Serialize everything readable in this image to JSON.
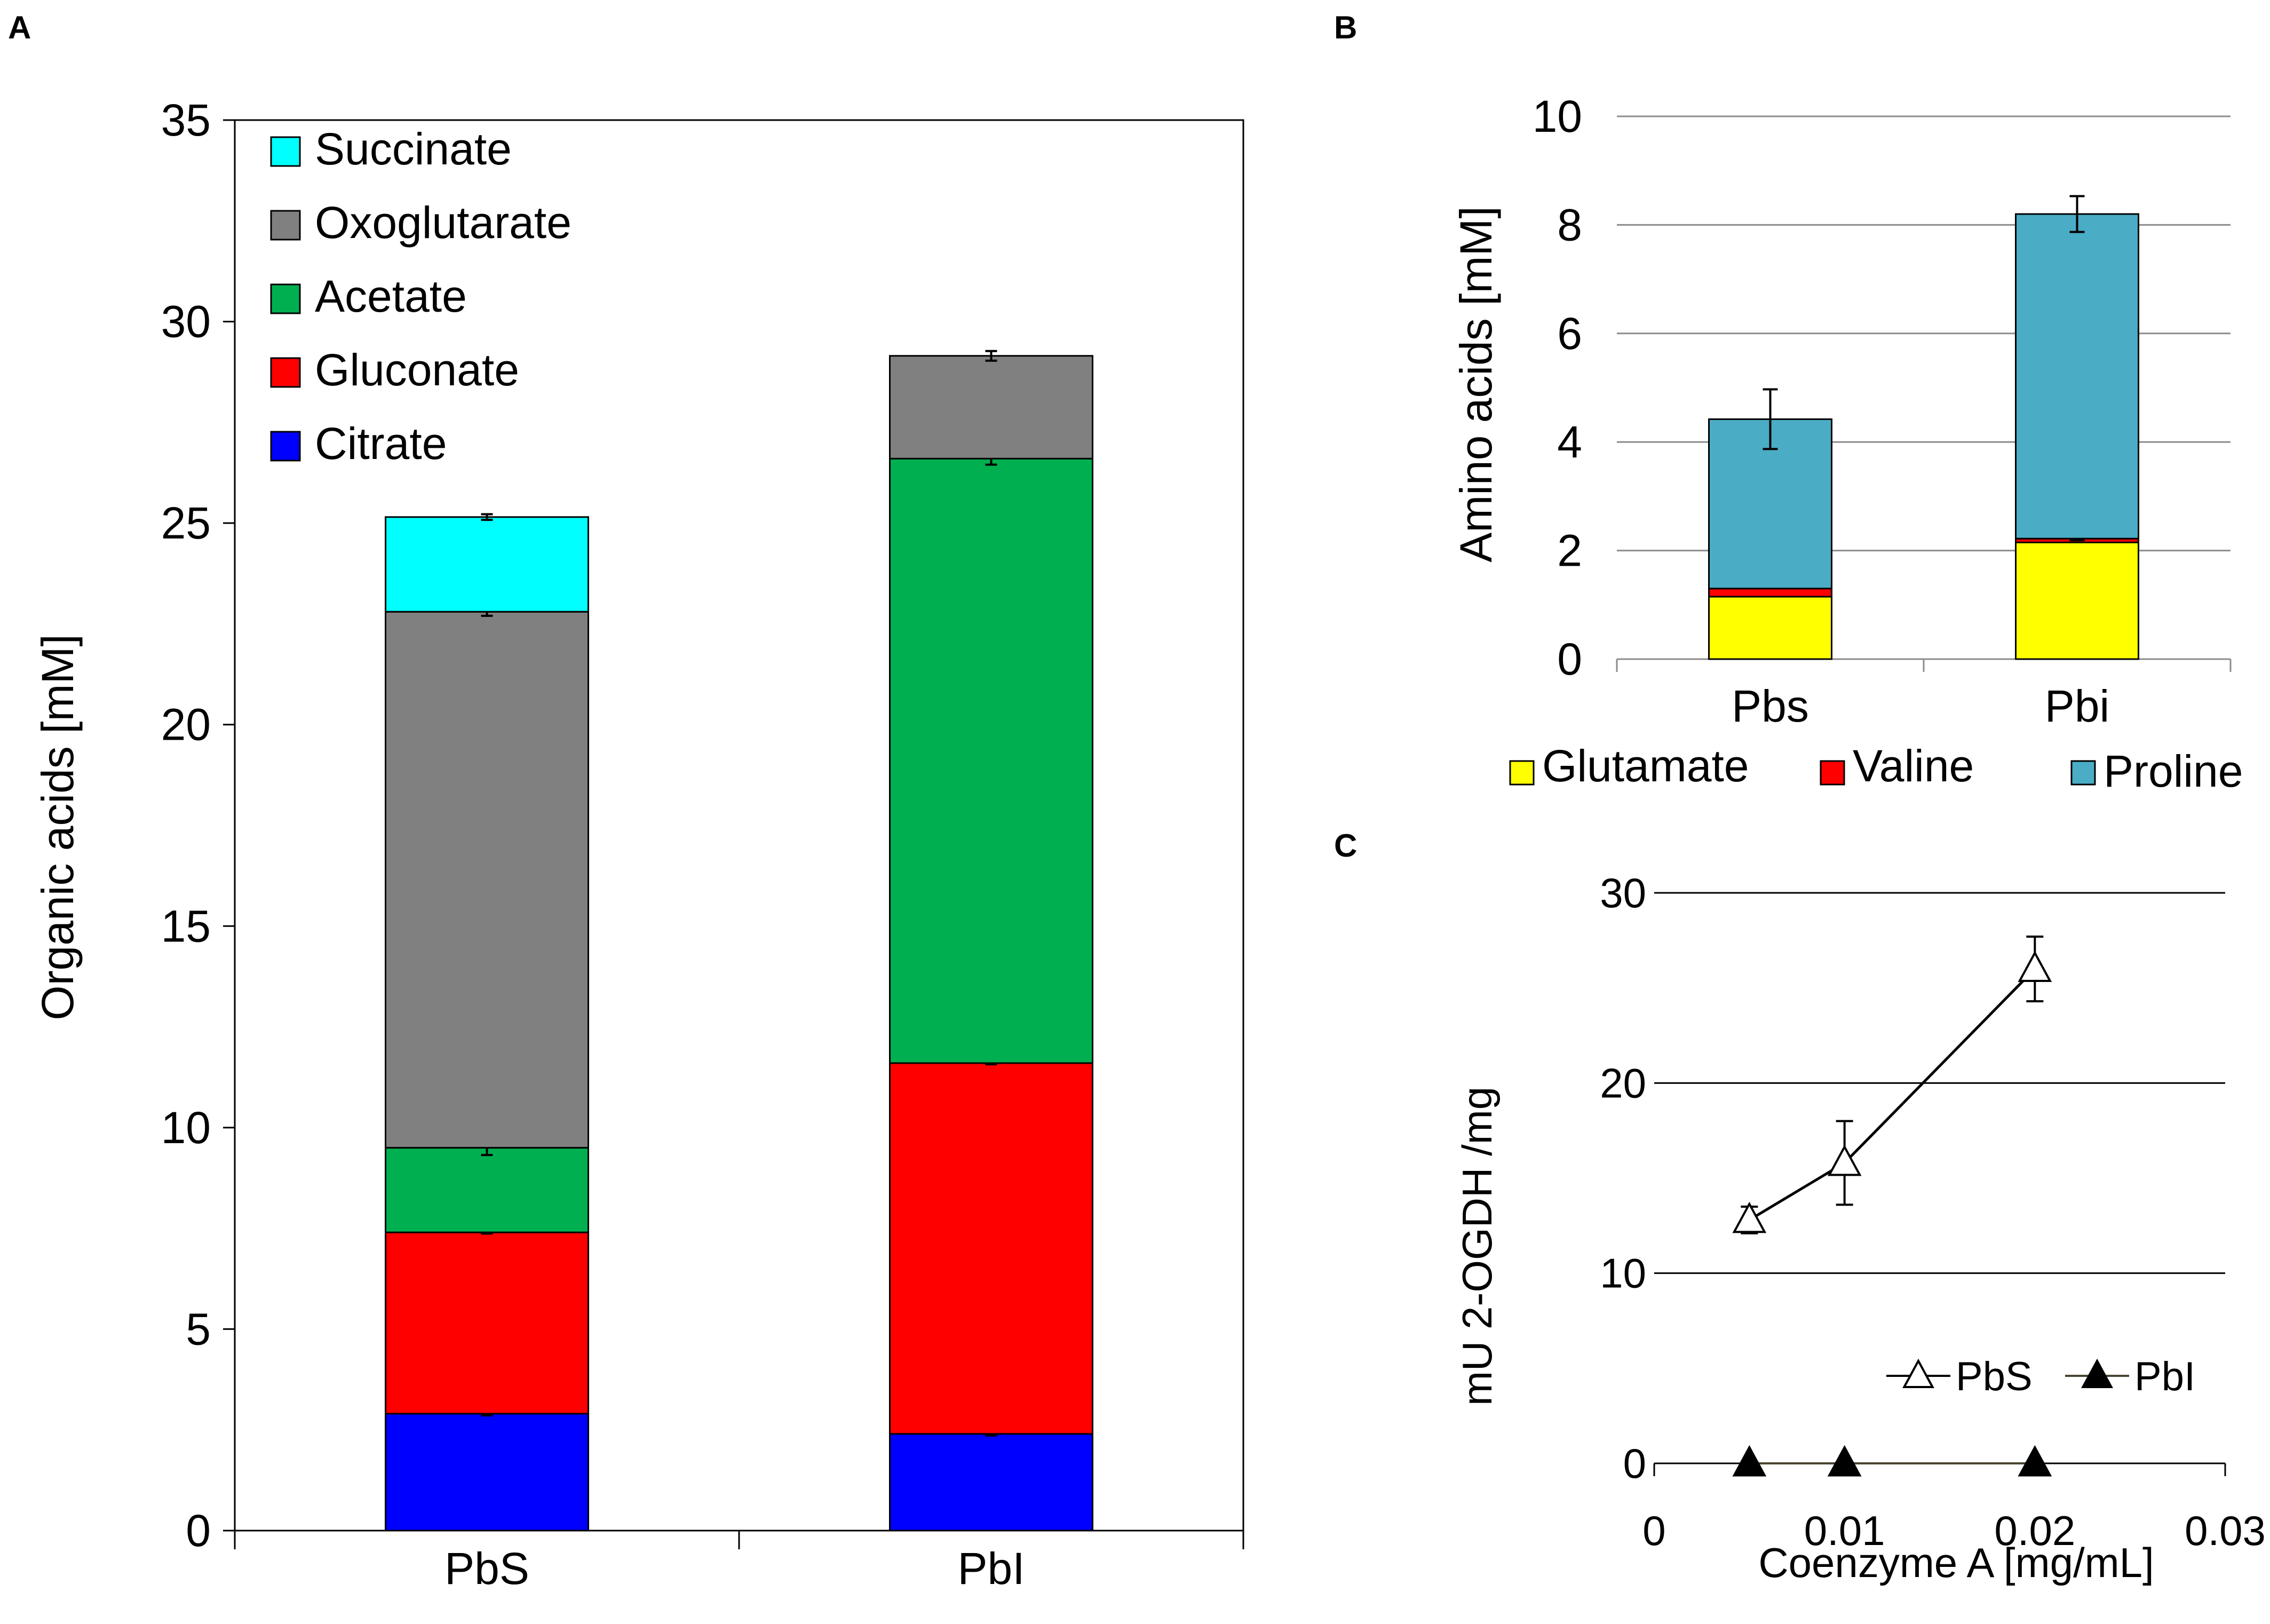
{
  "chart_data": [
    {
      "panel": "A",
      "type": "bar",
      "stacked": true,
      "categories": [
        "PbS",
        "PbI"
      ],
      "ylabel": "Organic acids [mM]",
      "xlabel": "",
      "ylim": [
        0,
        35
      ],
      "yticks": [
        "0",
        "5",
        "10",
        "15",
        "20",
        "25",
        "30",
        "35"
      ],
      "grid": false,
      "legend": "top-left",
      "series": [
        {
          "name": "Citrate",
          "color": "#0000FF",
          "values": [
            2.9,
            2.4
          ],
          "errors": [
            0.04,
            0.04
          ]
        },
        {
          "name": "Gluconate",
          "color": "#FF0000",
          "values": [
            4.5,
            9.2
          ],
          "errors": [
            0.03,
            0.03
          ]
        },
        {
          "name": "Acetate",
          "color": "#00B050",
          "values": [
            2.1,
            15.0
          ],
          "errors": [
            0.18,
            0.15
          ]
        },
        {
          "name": "Oxoglutarate",
          "color": "#808080",
          "values": [
            13.3,
            2.55
          ],
          "errors": [
            0.1,
            0.12
          ]
        },
        {
          "name": "Succinate",
          "color": "#00FFFF",
          "values": [
            2.35,
            0
          ],
          "errors": [
            0.07,
            0
          ]
        }
      ]
    },
    {
      "panel": "B",
      "type": "bar",
      "stacked": true,
      "categories": [
        "Pbs",
        "Pbi"
      ],
      "ylabel": "Amino acids [mM]",
      "xlabel": "",
      "ylim": [
        0,
        10
      ],
      "yticks": [
        "0",
        "2",
        "4",
        "6",
        "8",
        "10"
      ],
      "grid": true,
      "legend": "bottom",
      "series": [
        {
          "name": "Glutamate",
          "color": "#FFFF00",
          "values": [
            1.15,
            2.15
          ],
          "errors": [
            0,
            0
          ]
        },
        {
          "name": "Valine",
          "color": "#FF0000",
          "values": [
            0.15,
            0.07
          ],
          "errors": [
            0,
            0.03
          ]
        },
        {
          "name": "Proline",
          "color": "#4BACC6",
          "values": [
            3.12,
            5.98
          ],
          "errors": [
            0.55,
            0.33
          ]
        }
      ]
    },
    {
      "panel": "C",
      "type": "line",
      "xlabel": "Coenzyme A [mg/mL]",
      "ylabel": "mU 2-OGDH /mg",
      "xlim": [
        0,
        0.03
      ],
      "ylim": [
        0,
        30
      ],
      "xticks": [
        "0",
        "0.01",
        "0.02",
        "0.03"
      ],
      "yticks": [
        "0",
        "10",
        "20",
        "30"
      ],
      "grid": true,
      "legend": "bottom-right",
      "series": [
        {
          "name": "PbS",
          "marker": "open-triangle",
          "x": [
            0.005,
            0.01,
            0.02
          ],
          "y": [
            12.8,
            15.8,
            26.0
          ],
          "errors": [
            0.7,
            2.2,
            1.7
          ]
        },
        {
          "name": "PbI",
          "marker": "filled-triangle",
          "x": [
            0.005,
            0.01,
            0.02
          ],
          "y": [
            0,
            0,
            0
          ],
          "errors": [
            0,
            0,
            0
          ]
        }
      ]
    }
  ],
  "panels": {
    "a": {
      "label": "A"
    },
    "b": {
      "label": "B"
    },
    "c": {
      "label": "C"
    }
  }
}
